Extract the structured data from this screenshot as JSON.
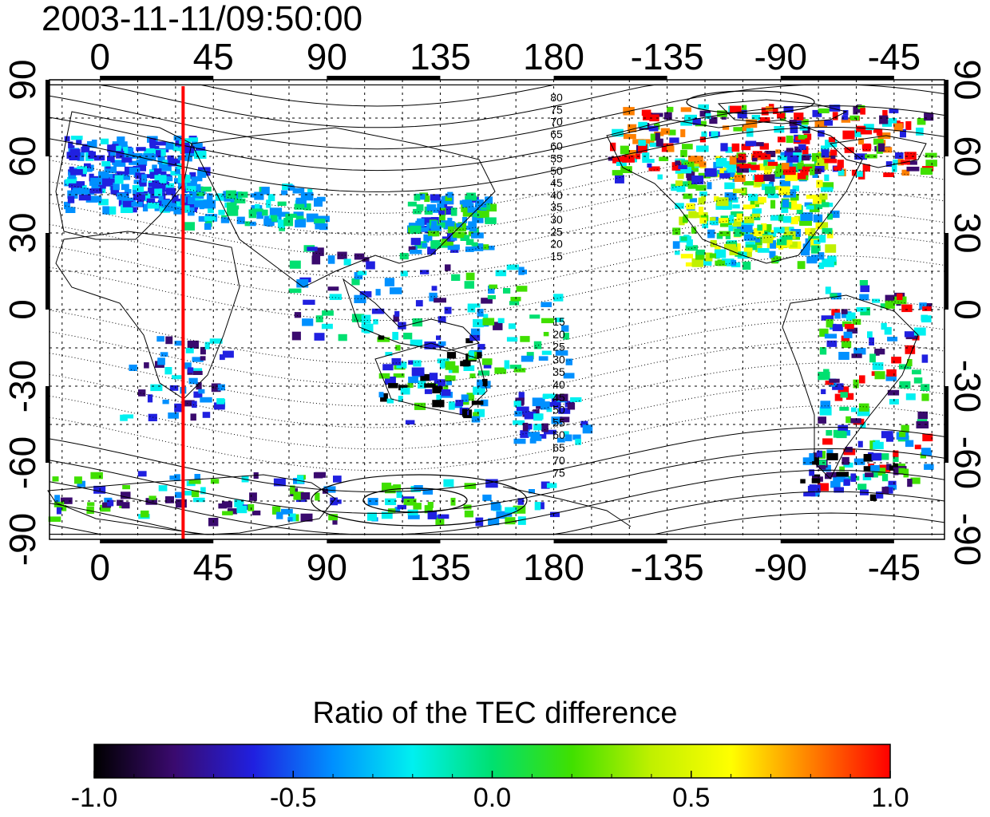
{
  "title": "2003-11-11/09:50:00",
  "map": {
    "x_tick_labels": [
      "0",
      "45",
      "90",
      "135",
      "180",
      "-135",
      "-90",
      "-45"
    ],
    "y_tick_labels": [
      "90",
      "60",
      "30",
      "0",
      "-30",
      "-60",
      "-90"
    ],
    "lon_range": [
      -20,
      335
    ],
    "lat_range": [
      -90,
      90
    ],
    "marker_longitude": 33,
    "marker_color": "#ff0000",
    "contour_labels_north": [
      "80",
      "75",
      "70",
      "65",
      "60",
      "55",
      "50",
      "45",
      "40",
      "35",
      "30",
      "25",
      "20",
      "15"
    ],
    "contour_labels_south": [
      "15",
      "20",
      "25",
      "30",
      "35",
      "40",
      "45",
      "50",
      "55",
      "60",
      "65",
      "70",
      "75"
    ]
  },
  "colorbar": {
    "title": "Ratio of the TEC difference",
    "tick_labels": [
      "-1.0",
      "-0.5",
      "0.0",
      "0.5",
      "1.0"
    ],
    "colors": [
      "#000000",
      "#3a0a6e",
      "#2020e0",
      "#0090ff",
      "#00f0f0",
      "#00e070",
      "#40e000",
      "#c0f000",
      "#ffff00",
      "#ff8000",
      "#ff0000"
    ]
  }
}
